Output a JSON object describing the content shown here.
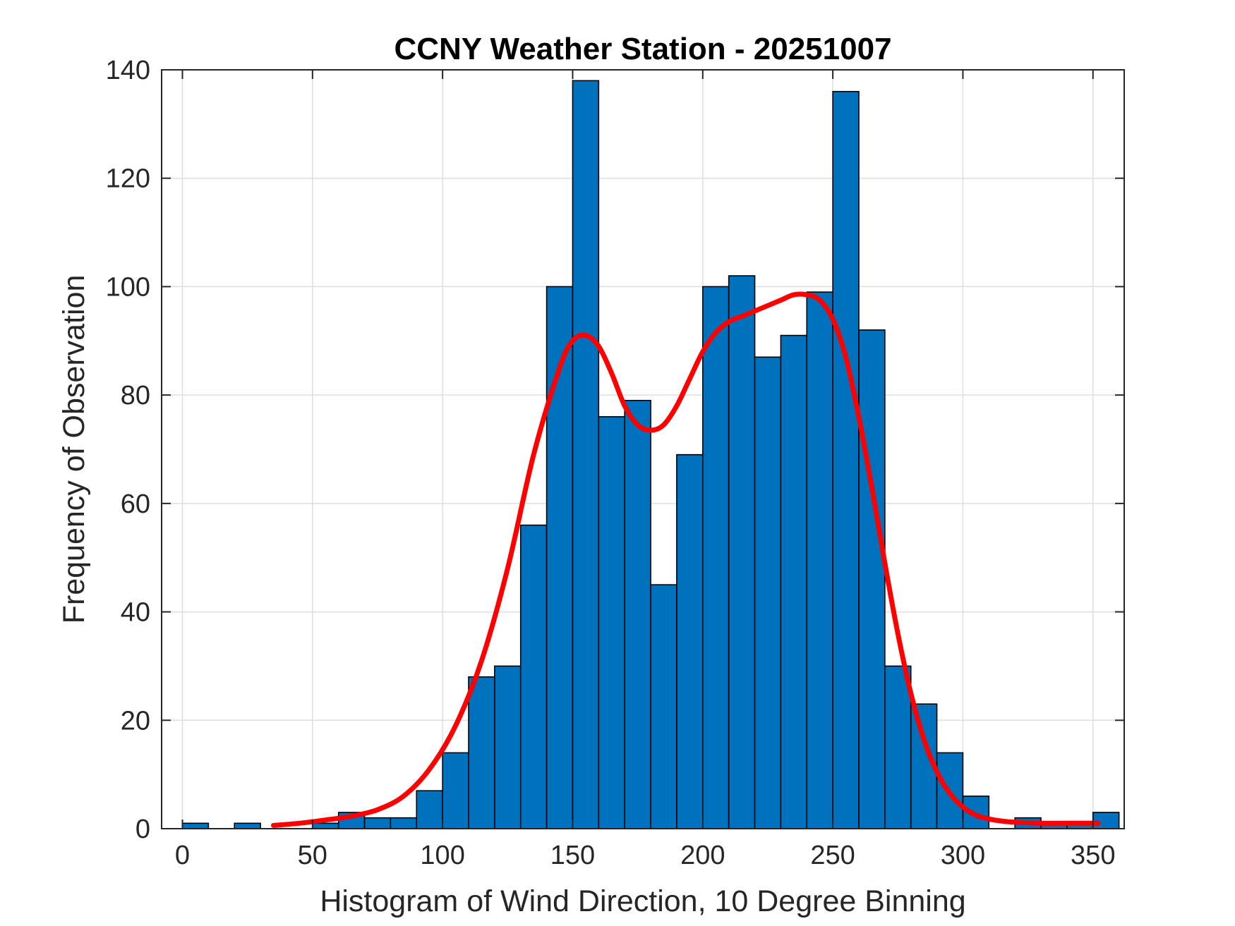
{
  "chart_data": {
    "type": "bar",
    "title": "CCNY Weather Station - 20251007",
    "xlabel": "Histogram of Wind Direction, 10 Degree Binning",
    "ylabel": "Frequency of Observation",
    "xlim": [
      -8,
      362
    ],
    "ylim": [
      0,
      140
    ],
    "xticks": [
      0,
      50,
      100,
      150,
      200,
      250,
      300,
      350
    ],
    "yticks": [
      0,
      20,
      40,
      60,
      80,
      100,
      120,
      140
    ],
    "grid": true,
    "bin_width": 10,
    "bins": [
      {
        "start": 0,
        "value": 1
      },
      {
        "start": 10,
        "value": 0
      },
      {
        "start": 20,
        "value": 1
      },
      {
        "start": 30,
        "value": 0
      },
      {
        "start": 40,
        "value": 0
      },
      {
        "start": 50,
        "value": 1
      },
      {
        "start": 60,
        "value": 3
      },
      {
        "start": 70,
        "value": 2
      },
      {
        "start": 80,
        "value": 2
      },
      {
        "start": 90,
        "value": 7
      },
      {
        "start": 100,
        "value": 14
      },
      {
        "start": 110,
        "value": 28
      },
      {
        "start": 120,
        "value": 30
      },
      {
        "start": 130,
        "value": 56
      },
      {
        "start": 140,
        "value": 100
      },
      {
        "start": 150,
        "value": 138
      },
      {
        "start": 160,
        "value": 76
      },
      {
        "start": 170,
        "value": 79
      },
      {
        "start": 180,
        "value": 45
      },
      {
        "start": 190,
        "value": 69
      },
      {
        "start": 200,
        "value": 100
      },
      {
        "start": 210,
        "value": 102
      },
      {
        "start": 220,
        "value": 87
      },
      {
        "start": 230,
        "value": 91
      },
      {
        "start": 240,
        "value": 99
      },
      {
        "start": 250,
        "value": 136
      },
      {
        "start": 260,
        "value": 92
      },
      {
        "start": 270,
        "value": 30
      },
      {
        "start": 280,
        "value": 23
      },
      {
        "start": 290,
        "value": 14
      },
      {
        "start": 300,
        "value": 6
      },
      {
        "start": 310,
        "value": 0
      },
      {
        "start": 320,
        "value": 2
      },
      {
        "start": 330,
        "value": 1
      },
      {
        "start": 340,
        "value": 1
      },
      {
        "start": 350,
        "value": 3
      }
    ],
    "fit_curve": {
      "name": "density fit",
      "x": [
        35,
        45,
        55,
        65,
        75,
        85,
        95,
        105,
        115,
        125,
        135,
        145,
        150,
        155,
        160,
        165,
        170,
        175,
        180,
        185,
        190,
        195,
        200,
        205,
        210,
        215,
        220,
        225,
        230,
        235,
        240,
        245,
        250,
        255,
        260,
        265,
        270,
        275,
        280,
        285,
        290,
        295,
        300,
        305,
        310,
        315,
        320,
        330,
        340,
        352
      ],
      "y": [
        0.6,
        1.0,
        1.6,
        2.3,
        3.5,
        6.0,
        11.0,
        19.0,
        31.0,
        48.0,
        69.0,
        85.0,
        90.0,
        91.0,
        89.0,
        84.0,
        78.0,
        74.5,
        73.5,
        74.5,
        78.0,
        83.0,
        88.0,
        91.5,
        93.5,
        94.5,
        95.5,
        96.5,
        97.5,
        98.5,
        98.5,
        97.5,
        94.0,
        87.0,
        76.0,
        63.0,
        49.0,
        36.0,
        25.0,
        16.5,
        10.5,
        6.5,
        4.0,
        2.5,
        1.8,
        1.4,
        1.2,
        1.0,
        1.0,
        1.0
      ],
      "color": "#ff0000"
    },
    "colors": {
      "bar_fill": "#0072bd",
      "bar_edge": "#000000",
      "curve": "#ff0000",
      "grid": "#dfdfdf",
      "axes": "#262626"
    }
  }
}
